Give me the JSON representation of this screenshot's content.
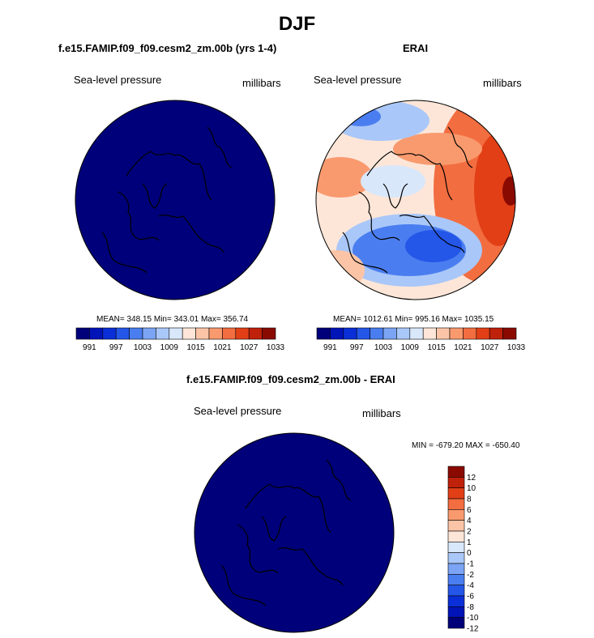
{
  "figure": {
    "title": "DJF"
  },
  "colors": {
    "palette": [
      "#00007a",
      "#0014b8",
      "#0a2fd8",
      "#2456e8",
      "#4a7ef0",
      "#7ba4f4",
      "#a9c7f8",
      "#d9e7fb",
      "#fde6d8",
      "#fcc4a6",
      "#f99a6e",
      "#f26d40",
      "#e23f17",
      "#c0210b",
      "#8a0a02"
    ],
    "land_outline": "#000000"
  },
  "chart_data": [
    {
      "type": "polar-contour-map",
      "id": "model",
      "panel_title": "f.e15.FAMIP.f09_f09.cesm2_zm.00b (yrs 1-4)",
      "variable": "Sea-level pressure",
      "units": "millibars",
      "stats_text": "MEAN= 348.15  Min= 343.01  Max= 356.74",
      "stats": {
        "mean": 348.15,
        "min": 343.01,
        "max": 356.74
      },
      "colorbar": {
        "orientation": "horizontal",
        "levels": [
          991,
          994,
          997,
          1000,
          1003,
          1006,
          1009,
          1012,
          1015,
          1018,
          1021,
          1024,
          1027,
          1030,
          1033
        ],
        "tick_labels": [
          "991",
          "997",
          "1003",
          "1009",
          "1015",
          "1021",
          "1027",
          "1033"
        ]
      }
    },
    {
      "type": "polar-contour-map",
      "id": "obs",
      "panel_title": "ERAI",
      "variable": "Sea-level pressure",
      "units": "millibars",
      "stats_text": "MEAN= 1012.61  Min= 995.16  Max= 1035.15",
      "stats": {
        "mean": 1012.61,
        "min": 995.16,
        "max": 1035.15
      },
      "colorbar": {
        "orientation": "horizontal",
        "levels": [
          991,
          994,
          997,
          1000,
          1003,
          1006,
          1009,
          1012,
          1015,
          1018,
          1021,
          1024,
          1027,
          1030,
          1033
        ],
        "tick_labels": [
          "991",
          "997",
          "1003",
          "1009",
          "1015",
          "1021",
          "1027",
          "1033"
        ]
      }
    },
    {
      "type": "polar-contour-map",
      "id": "diff",
      "panel_title": "f.e15.FAMIP.f09_f09.cesm2_zm.00b - ERAI",
      "variable": "Sea-level pressure",
      "units": "millibars",
      "stats_text": "MIN = -679.20 MAX = -650.40",
      "stats": {
        "min": -679.2,
        "max": -650.4
      },
      "colorbar": {
        "orientation": "vertical",
        "levels": [
          12,
          10,
          8,
          6,
          4,
          2,
          1,
          0,
          -1,
          -2,
          -4,
          -6,
          -8,
          -10,
          -12
        ],
        "tick_labels": [
          "12",
          "10",
          "8",
          "6",
          "4",
          "2",
          "1",
          "0",
          "-1",
          "-2",
          "-4",
          "-6",
          "-8",
          "-10",
          "-12"
        ]
      }
    }
  ]
}
